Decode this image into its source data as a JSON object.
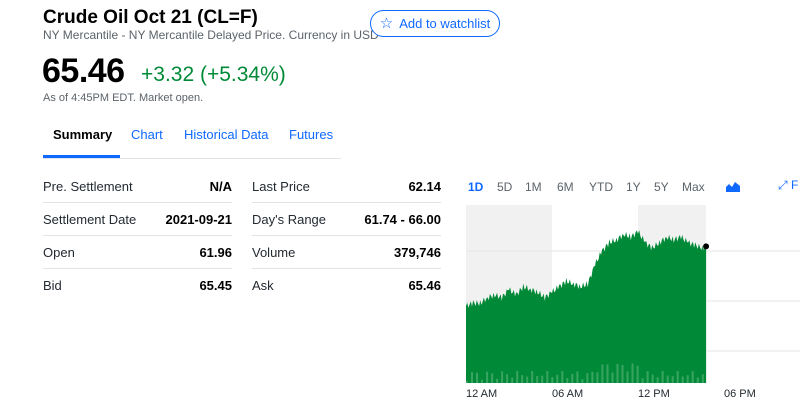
{
  "header": {
    "title": "Crude Oil Oct 21 (CL=F)",
    "subtitle": "NY Mercantile - NY Mercantile Delayed Price. Currency in USD",
    "watchlist_label": "Add to watchlist"
  },
  "quote": {
    "price": "65.46",
    "change": "+3.32 (+5.34%)",
    "as_of": "As of 4:45PM EDT. Market open.",
    "change_color": "#008a37"
  },
  "tabs": [
    "Summary",
    "Chart",
    "Historical Data",
    "Futures"
  ],
  "active_tab": "Summary",
  "stats_left": [
    {
      "label": "Pre. Settlement",
      "value": "N/A"
    },
    {
      "label": "Settlement Date",
      "value": "2021-09-21"
    },
    {
      "label": "Open",
      "value": "61.96"
    },
    {
      "label": "Bid",
      "value": "65.45"
    }
  ],
  "stats_right": [
    {
      "label": "Last Price",
      "value": "62.14"
    },
    {
      "label": "Day's Range",
      "value": "61.74 - 66.00"
    },
    {
      "label": "Volume",
      "value": "379,746"
    },
    {
      "label": "Ask",
      "value": "65.46"
    }
  ],
  "chart_controls": {
    "ranges": [
      "1D",
      "5D",
      "1M",
      "6M",
      "YTD",
      "1Y",
      "5Y",
      "Max"
    ],
    "active_range": "1D",
    "chart_type_icon": "mountain-chart-icon",
    "expand_icon": "expand-icon",
    "expand_label": "F"
  },
  "accent_color": "#0f69ff",
  "chart_data": {
    "type": "area",
    "x_tick_labels": [
      "12 AM",
      "06 AM",
      "12 PM",
      "06 PM"
    ],
    "x_hours": [
      0,
      0.5,
      1,
      1.5,
      2,
      2.5,
      3,
      3.5,
      4,
      4.5,
      5,
      5.5,
      6,
      6.5,
      7,
      7.5,
      8,
      8.5,
      9,
      9.5,
      10,
      10.5,
      11,
      11.5,
      12,
      12.5,
      13,
      13.5,
      14,
      14.5,
      15,
      15.5,
      16,
      16.5,
      16.75
    ],
    "price": [
      63.3,
      63.4,
      63.4,
      63.6,
      63.7,
      63.6,
      63.9,
      63.7,
      64.0,
      63.9,
      63.8,
      63.6,
      63.8,
      64.0,
      64.2,
      64.1,
      64.0,
      64.1,
      64.8,
      65.3,
      65.6,
      65.7,
      65.9,
      65.8,
      66.0,
      65.6,
      65.4,
      65.6,
      65.8,
      65.7,
      65.8,
      65.6,
      65.5,
      65.4,
      65.46
    ],
    "volume_shading": "low",
    "last_point": 65.46,
    "series_color": "#008a37",
    "session_shading": "pre-market and post-market shaded gray",
    "grid": true
  }
}
